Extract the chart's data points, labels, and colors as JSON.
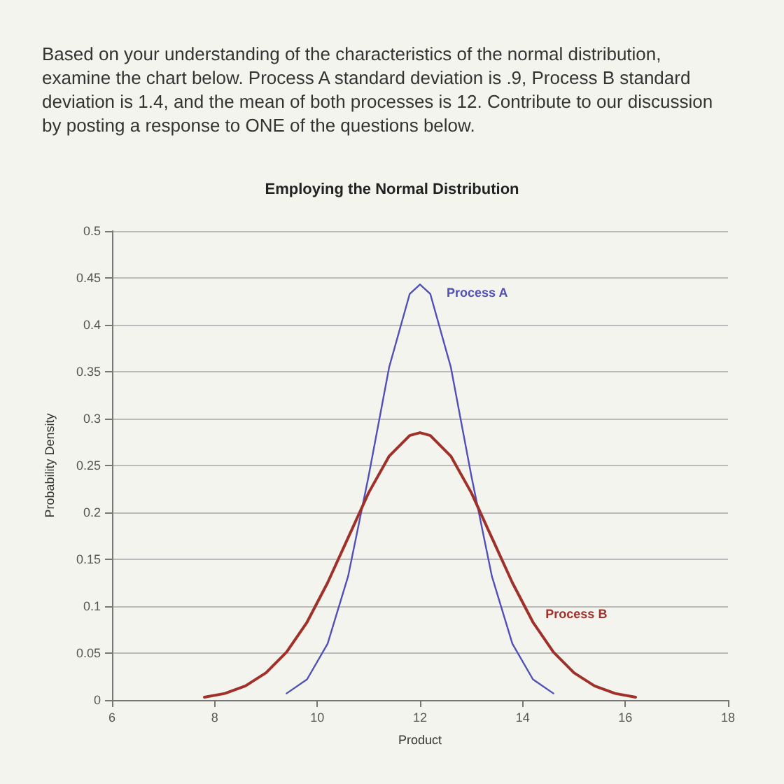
{
  "chart_data": {
    "type": "line",
    "title": "Employing the Normal Distribution",
    "xlabel": "Product",
    "ylabel": "Probability Density",
    "annotations": [
      "Based on your understanding of the characteristics of the normal distribution, examine the chart below.  Process A standard deviation is .9, Process B standard deviation is 1.4, and the mean of both processes is 12.  Contribute to our discussion by posting a response to ONE of the questions below."
    ],
    "series": [
      {
        "name": "Process A",
        "color": "#5050b8",
        "x": [
          9.4,
          9.8,
          10.2,
          10.6,
          11.0,
          11.4,
          11.8,
          12.0,
          12.2,
          12.6,
          13.0,
          13.4,
          13.8,
          14.2,
          14.6
        ],
        "values": [
          0.007,
          0.022,
          0.06,
          0.132,
          0.239,
          0.355,
          0.433,
          0.443,
          0.433,
          0.355,
          0.239,
          0.132,
          0.06,
          0.022,
          0.007
        ]
      },
      {
        "name": "Process B",
        "color": "#a0302a",
        "x": [
          7.8,
          8.2,
          8.6,
          9.0,
          9.4,
          9.8,
          10.2,
          10.6,
          11.0,
          11.4,
          11.8,
          12.0,
          12.2,
          12.6,
          13.0,
          13.4,
          13.8,
          14.2,
          14.6,
          15.0,
          15.4,
          15.8,
          16.2
        ],
        "values": [
          0.003,
          0.007,
          0.015,
          0.029,
          0.051,
          0.083,
          0.125,
          0.173,
          0.221,
          0.26,
          0.282,
          0.285,
          0.282,
          0.26,
          0.221,
          0.173,
          0.125,
          0.083,
          0.051,
          0.029,
          0.015,
          0.007,
          0.003
        ]
      }
    ],
    "xlim": [
      6,
      18
    ],
    "xticks": [
      6,
      8,
      10,
      12,
      14,
      16,
      18
    ],
    "ylim": [
      0,
      0.5
    ],
    "yticks": [
      0,
      0.05,
      0.1,
      0.15,
      0.2,
      0.25,
      0.3,
      0.35,
      0.4,
      0.45,
      0.5
    ],
    "grid": "y",
    "legend": false,
    "marker": "none",
    "line_style": "solid"
  }
}
